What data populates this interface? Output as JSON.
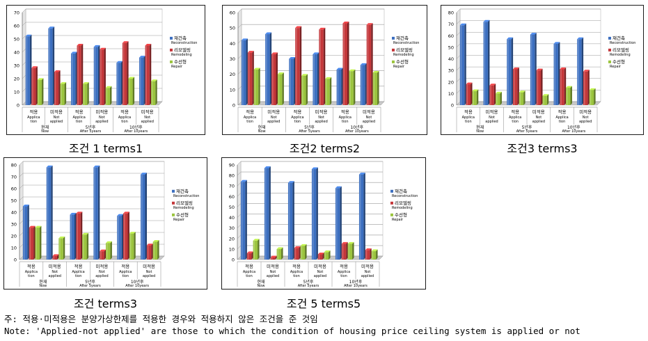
{
  "colors": {
    "series_1": "#3c6fc0",
    "series_2": "#c4373a",
    "series_3": "#9bc43e"
  },
  "chart_data": [
    {
      "type": "bar",
      "caption": "조건 1 terms1",
      "ylim": [
        0,
        70
      ],
      "yticks": [
        "0",
        "10",
        "20",
        "30",
        "40",
        "50",
        "60",
        "70"
      ],
      "categories": [
        "적용 Applica tion",
        "미적용 Not applied",
        "적용 Applica tion",
        "미적용 Not applied",
        "적용 Applica tion",
        "미적용 Not applied"
      ],
      "groups": [
        "현재 Now",
        "5년후 After 5years",
        "10년후 After 10years"
      ],
      "series": [
        {
          "name": "재건축 Reconstruction",
          "values": [
            52,
            58,
            39,
            44,
            32,
            36
          ]
        },
        {
          "name": "리모델링 Remodeling",
          "values": [
            28,
            25,
            45,
            42,
            47,
            45
          ]
        },
        {
          "name": "수선형 Repair",
          "values": [
            19,
            16,
            16,
            13,
            20,
            18
          ]
        }
      ]
    },
    {
      "type": "bar",
      "caption": "조건2 terms2",
      "ylim": [
        0,
        60
      ],
      "yticks": [
        "0",
        "10",
        "20",
        "30",
        "40",
        "50",
        "60"
      ],
      "categories": [
        "적용 Applica tion",
        "미적용 Not applied",
        "적용 Applica tion",
        "미적용 Not applied",
        "적용 Applica tion",
        "미적용 Not applied"
      ],
      "groups": [
        "현재 Now",
        "5년후 After 5years",
        "10년후 After 10years"
      ],
      "series": [
        {
          "name": "재건축 Reconstruction",
          "values": [
            42,
            46,
            30,
            33,
            23,
            26
          ]
        },
        {
          "name": "리모델링 Remodeling",
          "values": [
            34,
            33,
            50,
            49,
            53,
            52
          ]
        },
        {
          "name": "수선형 Repair",
          "values": [
            23,
            20,
            19,
            17,
            22,
            21
          ]
        }
      ]
    },
    {
      "type": "bar",
      "caption": "조건3 terms3",
      "ylim": [
        0,
        80
      ],
      "yticks": [
        "0",
        "10",
        "20",
        "30",
        "40",
        "50",
        "60",
        "70",
        "80"
      ],
      "categories": [
        "적용 Applica tion",
        "미적용 Not applied",
        "적용 Applica tion",
        "미적용 Not applied",
        "적용 Applica tion",
        "미적용 Not applied"
      ],
      "groups": [
        "현재 Now",
        "5년후 After 5years",
        "10년후 After 10years"
      ],
      "series": [
        {
          "name": "재건축 Reconstruction",
          "values": [
            69,
            72,
            57,
            61,
            53,
            57
          ]
        },
        {
          "name": "리모델링 Remodeling",
          "values": [
            18,
            17,
            31,
            30,
            31,
            29
          ]
        },
        {
          "name": "수선형 Repair",
          "values": [
            12,
            10,
            11,
            8,
            15,
            13
          ]
        }
      ]
    },
    {
      "type": "bar",
      "caption": "조건 terms3",
      "ylim": [
        0,
        80
      ],
      "yticks": [
        "0",
        "10",
        "20",
        "30",
        "40",
        "50",
        "60",
        "70",
        "80"
      ],
      "categories": [
        "적용 Applica tion",
        "미적용 Not applied",
        "적용 Applica tion",
        "미적용 Not applied",
        "적용 Applica tion",
        "미적용 Not applied"
      ],
      "groups": [
        "현재 Now",
        "5년후 After 5years",
        "10년후 After 10years"
      ],
      "series": [
        {
          "name": "재건축 Reconstruction",
          "values": [
            45,
            78,
            38,
            78,
            37,
            72
          ]
        },
        {
          "name": "리모델링 Remodeling",
          "values": [
            27,
            3,
            39,
            7,
            39,
            12
          ]
        },
        {
          "name": "수선형 Repair",
          "values": [
            27,
            18,
            21,
            14,
            22,
            15
          ]
        }
      ]
    },
    {
      "type": "bar",
      "caption": "조건 5 terms5",
      "ylim": [
        0,
        90
      ],
      "yticks": [
        "0",
        "10",
        "20",
        "30",
        "40",
        "50",
        "60",
        "70",
        "80",
        "90"
      ],
      "categories": [
        "적용 Applica tion",
        "미적용 Not applied",
        "적용 Applica tion",
        "미적용 Not applied",
        "적용 Applica tion",
        "미적용 Not applied"
      ],
      "groups": [
        "현재 Now",
        "5년후 After 5years",
        "10년후 After 10years"
      ],
      "series": [
        {
          "name": "재건축 Reconstruction",
          "values": [
            74,
            87,
            73,
            86,
            68,
            81
          ]
        },
        {
          "name": "리모델링 Remodeling",
          "values": [
            6,
            2,
            11,
            5,
            15,
            9
          ]
        },
        {
          "name": "수선형 Repair",
          "values": [
            18,
            10,
            13,
            7,
            15,
            8
          ]
        }
      ]
    }
  ],
  "notes": {
    "korean": "주: 적용·미적용은 분양가상한제를 적용한 경우와 적용하지 않은 조건을 준 것임",
    "english": "Note: 'Applied-not applied' are those to which the condition of housing price ceiling system is applied or not"
  }
}
